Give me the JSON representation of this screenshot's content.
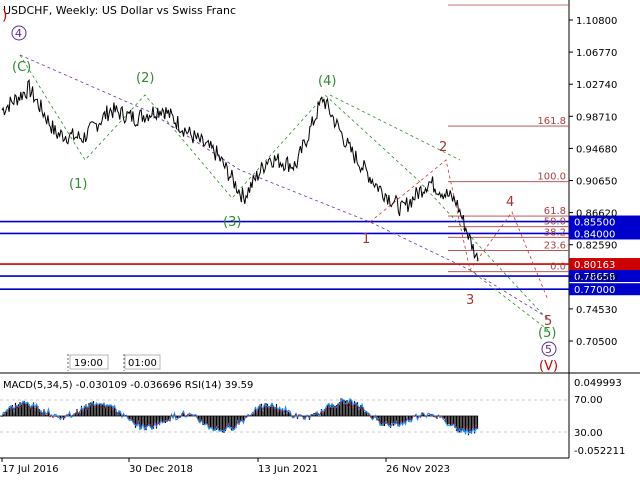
{
  "header": {
    "title": "USDCHF, Weekly:  US Dollar vs Swiss Franc"
  },
  "chart_data": {
    "type": "line",
    "symbol": "USDCHF",
    "timeframe": "Weekly",
    "description": "US Dollar vs Swiss Franc",
    "x": [
      "2016-07-17",
      "2017-01-15",
      "2017-07-16",
      "2018-01-14",
      "2018-07-15",
      "2018-12-30",
      "2019-06-30",
      "2019-12-29",
      "2020-06-28",
      "2020-12-27",
      "2021-06-13",
      "2021-12-12",
      "2022-06-12",
      "2022-12-11",
      "2023-06-11",
      "2023-11-26",
      "2024-05-26",
      "2024-11-24",
      "2025-04-20"
    ],
    "y": [
      0.995,
      1.022,
      0.965,
      0.96,
      0.995,
      0.985,
      0.997,
      0.965,
      0.94,
      0.885,
      0.935,
      0.925,
      1.01,
      0.945,
      0.9,
      0.87,
      0.905,
      0.88,
      0.805
    ],
    "price_axis_ticks": [
      "1.10800",
      "1.06770",
      "1.02740",
      "0.98710",
      "0.94680",
      "0.90650",
      "0.86620",
      "0.82590",
      "0.78560",
      "0.74530",
      "0.70500"
    ],
    "time_axis_labels": [
      "17 Jul 2016",
      "30 Dec 2018",
      "13 Jun 2021",
      "26 Nov 2023"
    ],
    "horizontal_levels": [
      {
        "label": "0.85500",
        "price": 0.855,
        "color": "#0000cc"
      },
      {
        "label": "0.84000",
        "price": 0.84,
        "color": "#0000cc"
      },
      {
        "label": "0.80163",
        "price": 0.80163,
        "color": "#cc0000"
      },
      {
        "label": "0.78658",
        "price": 0.78658,
        "color": "#0000cc"
      },
      {
        "label": "0.77000",
        "price": 0.77,
        "color": "#0000cc"
      }
    ],
    "fibonacci_levels": [
      "161.8",
      "100.0",
      "61.8",
      "50.0",
      "38.2",
      "23.6",
      "0.0"
    ],
    "wave_labels_green": [
      "(C)",
      "(1)",
      "(2)",
      "(3)",
      "(4)",
      "(5)"
    ],
    "wave_labels_red": [
      "1",
      "2",
      "3",
      "4",
      "5"
    ],
    "wave_labels_circled": [
      "4",
      "5"
    ],
    "wave_label_top": ")",
    "wave_label_bottom": "(V)",
    "period_separators": [
      "19:00",
      "01:00"
    ],
    "indicator": {
      "label": "MACD(5,34,5) -0.030109 -0.036696 RSI(14) 39.59",
      "ticks": [
        "0.049993",
        "70.00",
        "30.00",
        "-0.052211"
      ]
    },
    "grid": false
  }
}
